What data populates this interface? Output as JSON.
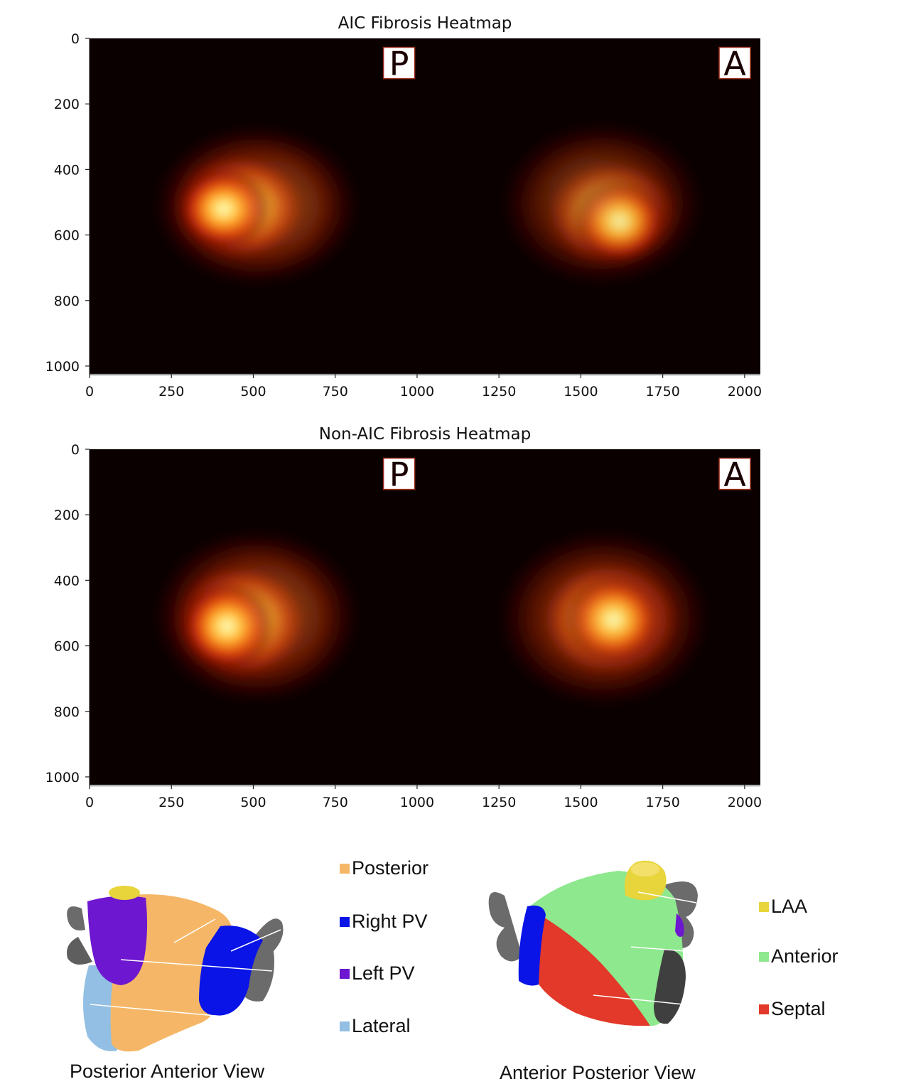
{
  "chart_data": [
    {
      "type": "heatmap",
      "title": "AIC Fibrosis Heatmap",
      "xlabel": "",
      "ylabel": "",
      "xlim": [
        0,
        2048
      ],
      "ylim": [
        1024,
        0
      ],
      "xticks": [
        0,
        250,
        500,
        750,
        1000,
        1250,
        1500,
        1750,
        2000
      ],
      "yticks": [
        0,
        200,
        400,
        600,
        800,
        1000
      ],
      "colormap": "afmhot",
      "background_color": "#0b0000",
      "markers": [
        {
          "label": "P",
          "x": 945,
          "y": 75
        },
        {
          "label": "A",
          "x": 1970,
          "y": 75
        }
      ],
      "hotspots": [
        {
          "region": "left",
          "x": [
            190,
            830
          ],
          "y": [
            260,
            760
          ],
          "peak_x": 410,
          "peak_y": 520,
          "peak_intensity": 1.0
        },
        {
          "region": "right",
          "x": [
            1250,
            1880
          ],
          "y": [
            250,
            760
          ],
          "peak_x": 1620,
          "peak_y": 560,
          "peak_intensity": 0.8
        }
      ]
    },
    {
      "type": "heatmap",
      "title": "Non-AIC Fibrosis Heatmap",
      "xlabel": "",
      "ylabel": "",
      "xlim": [
        0,
        2048
      ],
      "ylim": [
        1024,
        0
      ],
      "xticks": [
        0,
        250,
        500,
        750,
        1000,
        1250,
        1500,
        1750,
        2000
      ],
      "yticks": [
        0,
        200,
        400,
        600,
        800,
        1000
      ],
      "colormap": "afmhot",
      "background_color": "#0b0000",
      "markers": [
        {
          "label": "P",
          "x": 945,
          "y": 75
        },
        {
          "label": "A",
          "x": 1970,
          "y": 75
        }
      ],
      "hotspots": [
        {
          "region": "left",
          "x": [
            190,
            830
          ],
          "y": [
            240,
            780
          ],
          "peak_x": 420,
          "peak_y": 540,
          "peak_intensity": 1.0
        },
        {
          "region": "right",
          "x": [
            1240,
            1900
          ],
          "y": [
            240,
            790
          ],
          "peak_x": 1600,
          "peak_y": 520,
          "peak_intensity": 0.9
        }
      ]
    }
  ],
  "legend_left": [
    {
      "label": "Posterior",
      "color": "#f5b767"
    },
    {
      "label": "Right PV",
      "color": "#0a14e6"
    },
    {
      "label": "Left PV",
      "color": "#6e17d0"
    },
    {
      "label": "Lateral",
      "color": "#92bfe3"
    }
  ],
  "legend_right": [
    {
      "label": "LAA",
      "color": "#e8d53c"
    },
    {
      "label": "Anterior",
      "color": "#8ee88e"
    },
    {
      "label": "Septal",
      "color": "#e2392a"
    }
  ],
  "captions": {
    "left_view": "Posterior Anterior View",
    "right_view": "Anterior Posterior View"
  }
}
